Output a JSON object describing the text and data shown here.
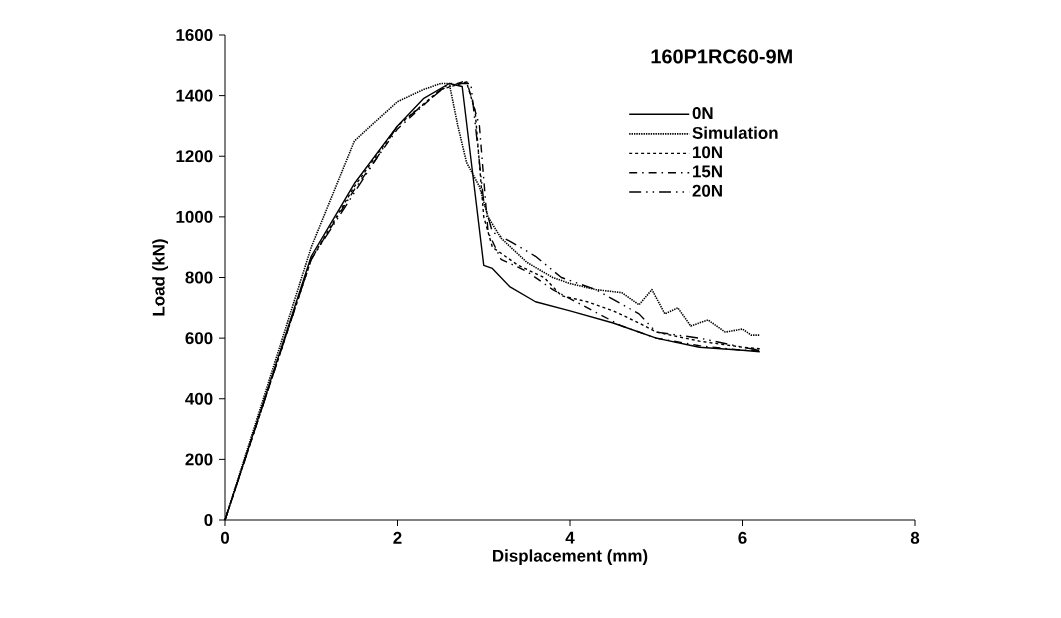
{
  "chart_data": {
    "type": "line",
    "title": "160P1RC60-9M",
    "xlabel": "Displacement (mm)",
    "ylabel": "Load (kN)",
    "xlim": [
      0,
      8
    ],
    "ylim": [
      0,
      1600
    ],
    "xticks": [
      0,
      2,
      4,
      6,
      8
    ],
    "yticks": [
      0,
      200,
      400,
      600,
      800,
      1000,
      1200,
      1400,
      1600
    ],
    "grid": false,
    "legend": "top right",
    "marker": "none",
    "series": [
      {
        "name": "0N",
        "color": "#000000",
        "line_style": "solid",
        "x": [
          0,
          1.0,
          1.5,
          2.0,
          2.3,
          2.6,
          2.75,
          3.0,
          3.1,
          3.3,
          3.6,
          4.0,
          4.5,
          5.0,
          5.5,
          6.0,
          6.2
        ],
        "values": [
          0,
          870,
          1110,
          1300,
          1390,
          1440,
          1430,
          840,
          830,
          770,
          720,
          690,
          650,
          600,
          570,
          560,
          555
        ]
      },
      {
        "name": "Simulation",
        "color": "#000000",
        "line_style": "dotted",
        "x": [
          0,
          0.5,
          1.0,
          1.5,
          1.65,
          2.0,
          2.3,
          2.5,
          2.6,
          2.7,
          2.8,
          2.95,
          3.05,
          3.2,
          3.5,
          3.8,
          4.0,
          4.3,
          4.6,
          4.8,
          4.95,
          5.1,
          5.25,
          5.4,
          5.6,
          5.8,
          6.0,
          6.1,
          6.2
        ],
        "values": [
          0,
          450,
          900,
          1250,
          1290,
          1380,
          1420,
          1440,
          1440,
          1300,
          1180,
          1100,
          1000,
          930,
          850,
          800,
          780,
          760,
          750,
          710,
          760,
          680,
          700,
          640,
          660,
          620,
          630,
          610,
          610
        ]
      },
      {
        "name": "10N",
        "color": "#000000",
        "line_style": "dashed",
        "x": [
          0,
          1.0,
          1.5,
          2.0,
          2.5,
          2.8,
          2.9,
          3.0,
          3.1,
          3.4,
          3.7,
          3.9,
          4.2,
          4.5,
          4.8,
          5.0,
          5.5,
          6.0,
          6.2
        ],
        "values": [
          0,
          860,
          1100,
          1300,
          1420,
          1445,
          1350,
          1000,
          900,
          840,
          800,
          740,
          720,
          690,
          650,
          620,
          590,
          570,
          565
        ]
      },
      {
        "name": "15N",
        "color": "#000000",
        "line_style": "dashdot",
        "x": [
          0,
          1.0,
          1.5,
          2.0,
          2.5,
          2.8,
          2.95,
          3.05,
          3.2,
          3.5,
          3.8,
          4.2,
          4.6,
          5.0,
          5.5,
          6.0,
          6.2
        ],
        "values": [
          0,
          860,
          1090,
          1290,
          1420,
          1450,
          1300,
          950,
          860,
          820,
          760,
          700,
          640,
          600,
          575,
          560,
          560
        ]
      },
      {
        "name": "20N",
        "color": "#000000",
        "line_style": "dashdotdot",
        "x": [
          0,
          1.0,
          2.0,
          2.6,
          2.85,
          3.0,
          3.1,
          3.3,
          3.6,
          3.9,
          4.3,
          4.8,
          5.0,
          5.5,
          6.0,
          6.2
        ],
        "values": [
          0,
          860,
          1300,
          1440,
          1440,
          1050,
          950,
          920,
          870,
          800,
          760,
          680,
          620,
          600,
          570,
          560
        ]
      }
    ]
  }
}
